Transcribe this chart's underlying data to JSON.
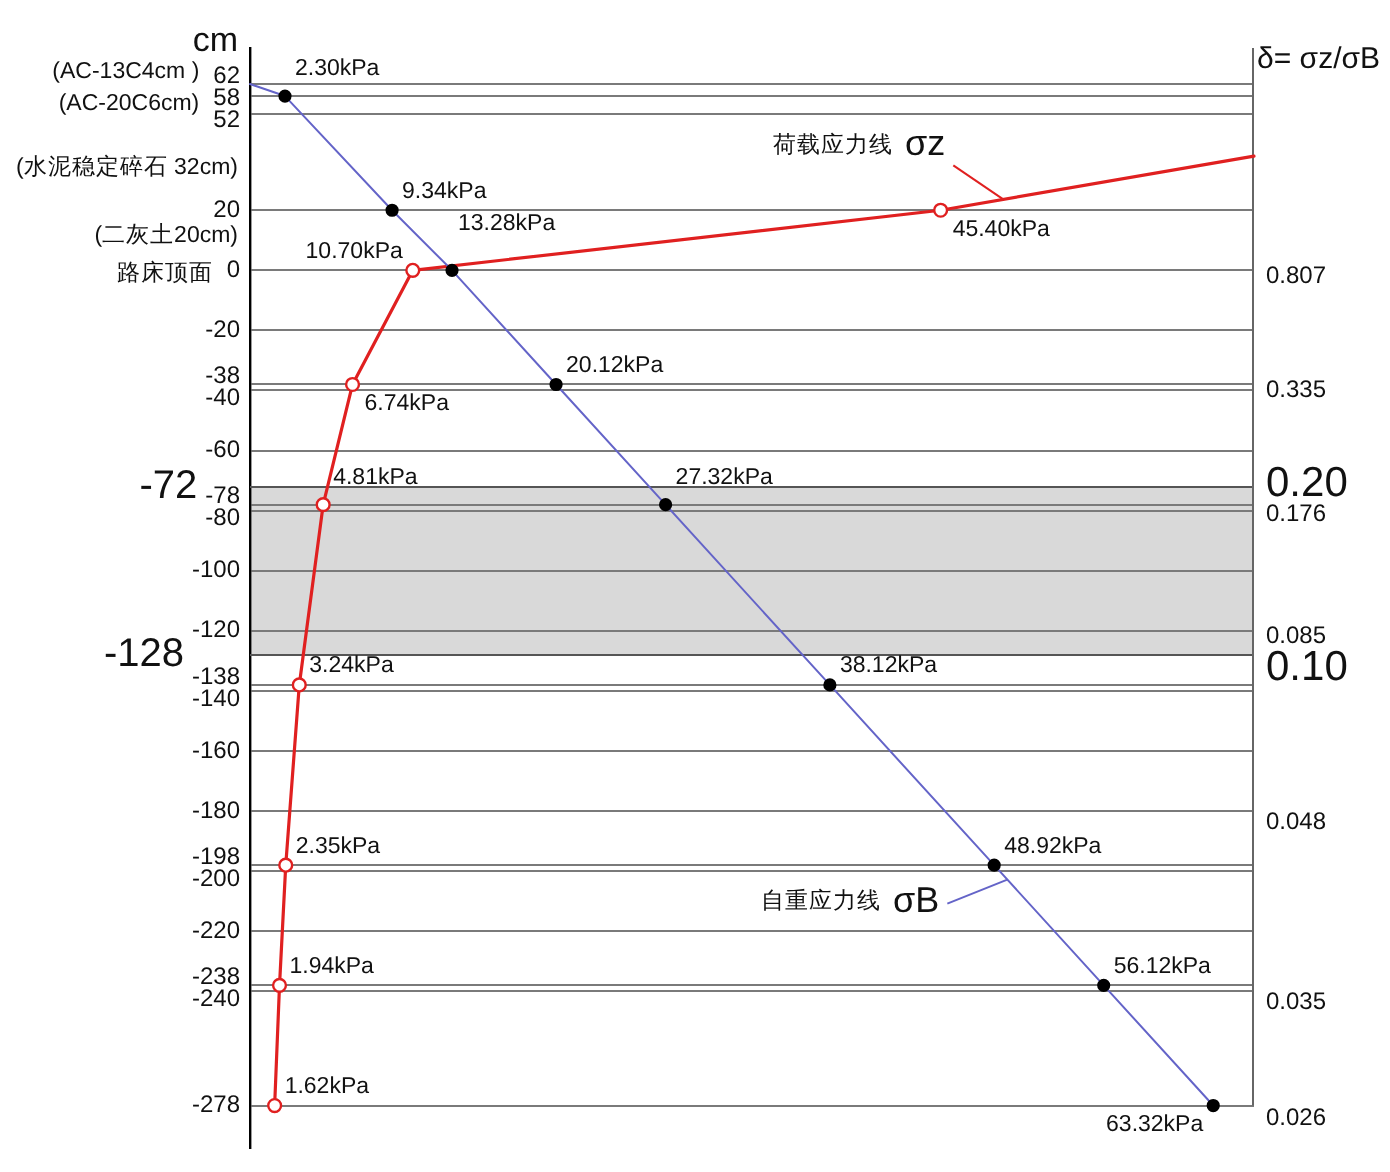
{
  "chart_data": {
    "type": "line",
    "orientation": "horizontal",
    "ylabel": "cm",
    "ylim": [
      -292,
      74
    ],
    "yticks": [
      62,
      58,
      52,
      20,
      0,
      -20,
      -38,
      -40,
      -60,
      -78,
      -80,
      -100,
      -120,
      -138,
      -140,
      -160,
      -180,
      -198,
      -200,
      -220,
      -238,
      -240,
      -278
    ],
    "tick_labels": "y",
    "grid": "y",
    "marker": "circle",
    "line_style": "solid",
    "bands": [
      {
        "axis": "y",
        "from": -128,
        "to": -72,
        "color": "#d9d9d9"
      }
    ],
    "ref_lines": [
      {
        "axis": "y",
        "value": -72,
        "label": "-72"
      },
      {
        "axis": "y",
        "value": -128,
        "label": "-128"
      }
    ],
    "annotations": [
      "(AC-13C4cm )",
      "(AC-20C6cm)",
      "(水泥稳定碎石 32cm)",
      "(二灰土20cm)",
      "路床顶面",
      "δ= σz/σB",
      "0.807",
      "0.335",
      "0.20",
      "0.176",
      "0.085",
      "0.10",
      "0.048",
      "0.035",
      "0.026"
    ],
    "series": [
      {
        "name": "自重应力线 σB",
        "color": "#6464c8",
        "colors": [
          "#000000",
          "#000000",
          "#000000",
          "#000000",
          "#000000",
          "#000000",
          "#000000",
          "#000000",
          "#000000",
          "#000000"
        ],
        "x": [
          62,
          58,
          20,
          0,
          -38,
          -78,
          -138,
          -198,
          -238,
          -278
        ],
        "values": [
          0,
          2.3,
          9.34,
          13.28,
          20.12,
          27.32,
          38.12,
          48.92,
          56.12,
          63.32
        ],
        "value_labels": [
          null,
          "2.30kPa",
          "9.34kPa",
          "13.28kPa",
          "20.12kPa",
          "27.32kPa",
          "38.12kPa",
          "48.92kPa",
          "56.12kPa",
          "63.32kPa"
        ]
      },
      {
        "name": "荷载应力线 σz",
        "color": "#e02020",
        "x": [
          38,
          20,
          0,
          -38,
          -78,
          -138,
          -198,
          -238,
          -278
        ],
        "values": [
          66,
          45.4,
          10.7,
          6.74,
          4.81,
          3.24,
          2.35,
          1.94,
          1.62
        ],
        "value_labels": [
          null,
          "45.40kPa",
          "10.70kPa",
          "6.74kPa",
          "4.81kPa",
          "3.24kPa",
          "2.35kPa",
          "1.94kPa",
          "1.62kPa"
        ]
      }
    ]
  }
}
